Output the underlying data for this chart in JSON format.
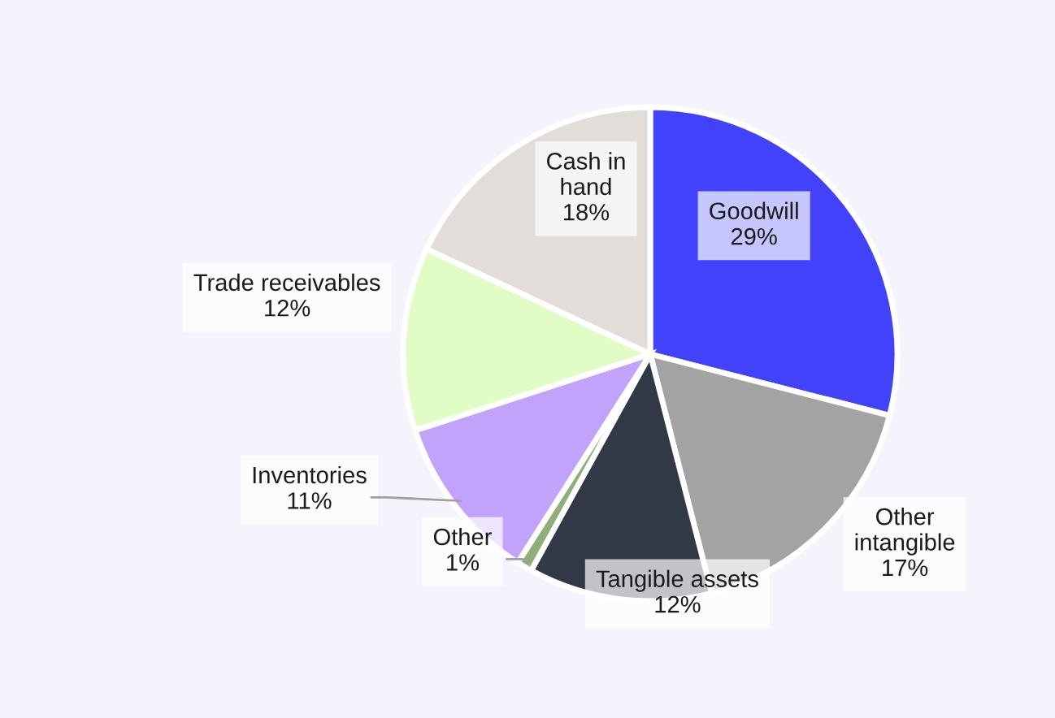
{
  "chart_data": {
    "type": "pie",
    "categories": [
      "Goodwill",
      "Other\nintangible",
      "Tangible assets",
      "Other",
      "Inventories",
      "Trade receivables",
      "Cash in\nhand"
    ],
    "values": [
      29,
      17,
      12,
      1,
      11,
      12,
      18
    ],
    "colors": [
      "#4242fb",
      "#a3a3a3",
      "#313846",
      "#8fae7a",
      "#c1a3fb",
      "#e1fdc5",
      "#e2ddd9"
    ],
    "value_labels": [
      "29%",
      "17%",
      "12%",
      "1%",
      "11%",
      "12%",
      "18%"
    ]
  }
}
